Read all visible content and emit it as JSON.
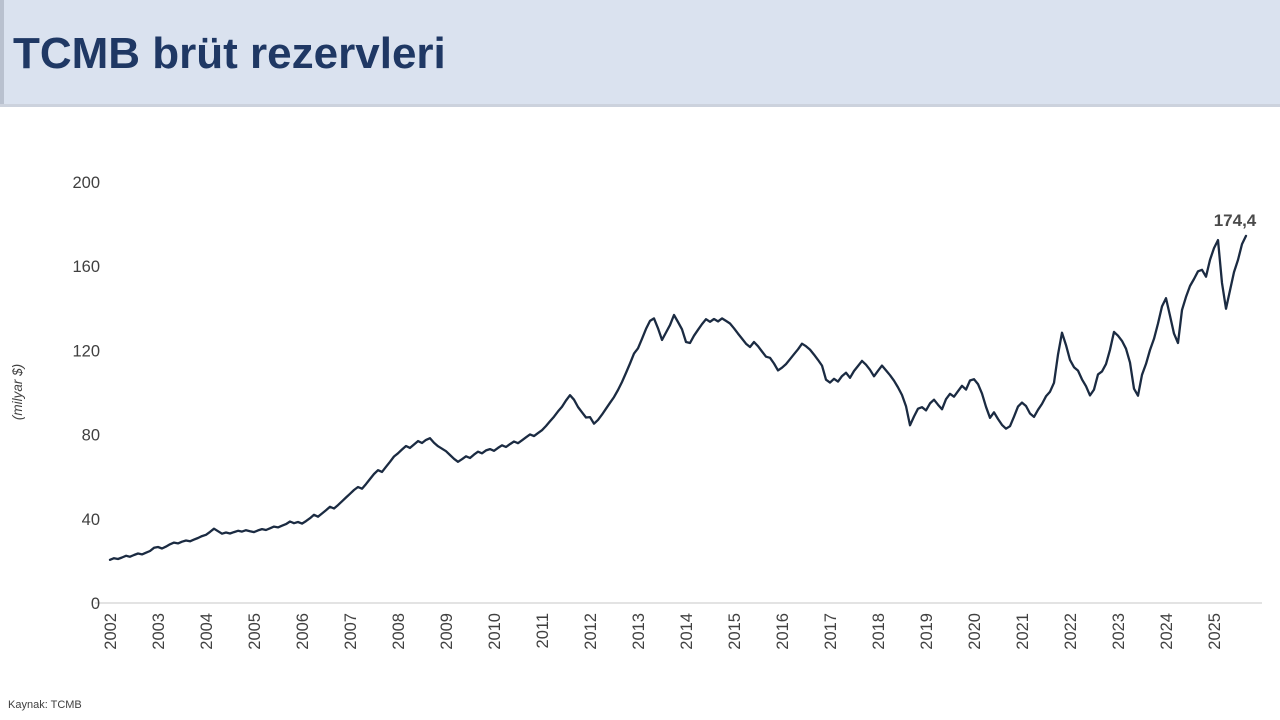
{
  "header": {
    "title": "TCMB brüt rezervleri"
  },
  "footer": {
    "source": "Kaynak: TCMB"
  },
  "colors": {
    "header_bg": "#dae2ef",
    "title_text": "#1f3864",
    "line": "#1b2b42",
    "axis_line": "#d2d2d2",
    "tick_text": "#404040",
    "point_label_text": "#4a4a4a"
  },
  "chart_data": {
    "type": "line",
    "title": "TCMB brüt rezervleri",
    "xlabel": "",
    "ylabel": "(milyar $)",
    "legend": "none",
    "grid": false,
    "ylim": [
      0,
      200
    ],
    "y_ticks": [
      0,
      40,
      80,
      120,
      160,
      200
    ],
    "x_tick_labels": [
      "2002",
      "2003",
      "2004",
      "2005",
      "2006",
      "2007",
      "2008",
      "2009",
      "2010",
      "2011",
      "2012",
      "2013",
      "2014",
      "2015",
      "2016",
      "2017",
      "2018",
      "2019",
      "2020",
      "2021",
      "2022",
      "2023",
      "2024",
      "2025"
    ],
    "last_point_label": "174,4",
    "series": [
      {
        "name": "TCMB brüt rezervleri (milyar $)",
        "start_year": 2002,
        "points_per_year": 12,
        "values": [
          20.5,
          21.3,
          20.9,
          21.6,
          22.4,
          22.0,
          22.8,
          23.5,
          23.1,
          23.9,
          24.7,
          26.2,
          26.6,
          25.9,
          26.8,
          27.9,
          28.7,
          28.3,
          29.1,
          29.7,
          29.3,
          30.1,
          30.9,
          31.8,
          32.4,
          33.8,
          35.3,
          34.1,
          32.9,
          33.5,
          33.0,
          33.7,
          34.3,
          33.9,
          34.6,
          34.1,
          33.7,
          34.5,
          35.1,
          34.7,
          35.5,
          36.3,
          35.9,
          36.7,
          37.5,
          38.7,
          37.9,
          38.5,
          37.7,
          38.9,
          40.3,
          41.9,
          41.0,
          42.5,
          44.1,
          45.7,
          44.9,
          46.5,
          48.3,
          50.1,
          51.9,
          53.7,
          55.1,
          54.3,
          56.5,
          58.9,
          61.3,
          63.1,
          62.3,
          64.7,
          67.1,
          69.6,
          71.1,
          72.9,
          74.6,
          73.7,
          75.3,
          76.9,
          76.0,
          77.5,
          78.3,
          76.1,
          74.5,
          73.3,
          72.1,
          70.3,
          68.5,
          67.1,
          68.3,
          69.7,
          68.9,
          70.5,
          71.9,
          71.1,
          72.5,
          73.1,
          72.3,
          73.7,
          74.9,
          74.1,
          75.5,
          76.7,
          75.9,
          77.3,
          78.7,
          80.1,
          79.3,
          80.7,
          82.1,
          84.1,
          86.3,
          88.5,
          91.0,
          93.2,
          96.2,
          98.7,
          96.6,
          93.1,
          90.6,
          88.1,
          88.3,
          85.2,
          87.0,
          89.5,
          92.3,
          95.1,
          97.8,
          101.2,
          105.0,
          109.3,
          113.8,
          118.5,
          121.0,
          125.5,
          130.2,
          134.0,
          135.2,
          130.5,
          125.0,
          128.5,
          132.0,
          136.8,
          133.5,
          130.0,
          124.0,
          123.5,
          127.0,
          129.8,
          132.5,
          134.8,
          133.6,
          134.9,
          133.8,
          135.2,
          134.0,
          132.8,
          130.5,
          128.0,
          125.6,
          123.2,
          121.6,
          124.0,
          122.0,
          119.5,
          117.0,
          116.5,
          113.8,
          110.5,
          111.8,
          113.5,
          115.8,
          118.2,
          120.5,
          123.2,
          122.0,
          120.4,
          118.0,
          115.5,
          112.8,
          106.1,
          104.7,
          106.5,
          105.2,
          107.8,
          109.4,
          107.0,
          110.2,
          112.6,
          115.0,
          113.2,
          110.8,
          107.7,
          110.3,
          112.8,
          110.5,
          108.2,
          105.6,
          102.4,
          98.8,
          93.5,
          84.4,
          88.6,
          92.3,
          93.0,
          91.5,
          94.8,
          96.6,
          94.2,
          92.0,
          96.8,
          99.4,
          98.0,
          100.6,
          103.2,
          101.4,
          105.7,
          106.3,
          104.0,
          99.5,
          93.2,
          88.0,
          90.6,
          87.4,
          84.6,
          82.8,
          84.0,
          88.5,
          93.3,
          95.2,
          93.6,
          90.0,
          88.4,
          91.8,
          94.6,
          98.2,
          100.4,
          104.6,
          118.0,
          128.4,
          122.5,
          115.5,
          112.0,
          110.4,
          106.2,
          103.0,
          98.6,
          101.4,
          108.6,
          110.0,
          113.5,
          120.3,
          128.8,
          127.0,
          124.5,
          120.8,
          114.2,
          101.8,
          98.5,
          108.4,
          113.6,
          120.2,
          125.5,
          132.8,
          140.9,
          144.8,
          136.5,
          128.0,
          123.5,
          139.2,
          145.4,
          150.6,
          153.9,
          157.6,
          158.3,
          155.0,
          163.0,
          168.6,
          172.4,
          152.0,
          139.8,
          148.5,
          157.2,
          163.0,
          170.5,
          174.4
        ]
      }
    ]
  }
}
